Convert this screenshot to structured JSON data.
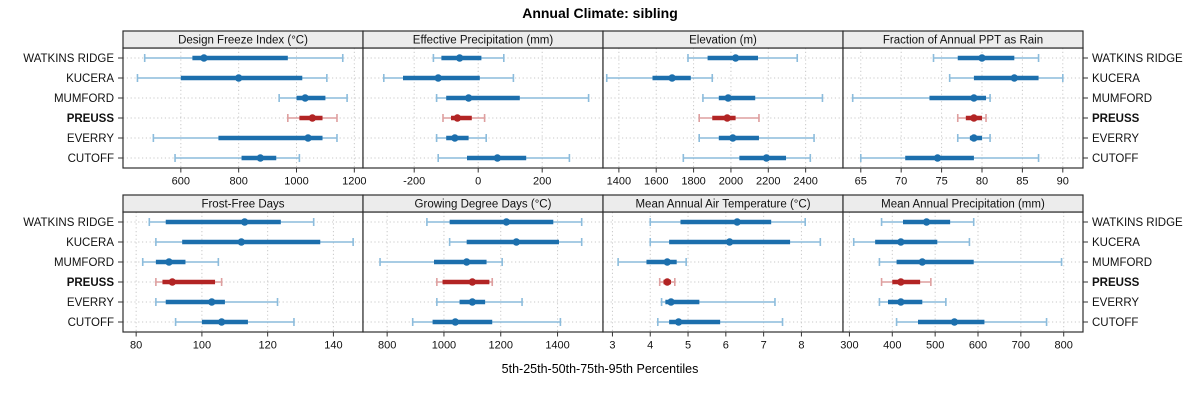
{
  "title": "Annual Climate: sibling",
  "caption": "5th-25th-50th-75th-95th Percentiles",
  "categories": [
    "WATKINS RIDGE",
    "KUCERA",
    "MUMFORD",
    "PREUSS",
    "EVERRY",
    "CUTOFF"
  ],
  "highlight_category": "PREUSS",
  "colors": {
    "series_strong": "#1c6fad",
    "series_light": "#8cbcdc",
    "highlight_strong": "#b22424",
    "highlight_light": "#de9f9f",
    "grid": "#c9c9c9",
    "strip_bg": "#ececec",
    "panel_border": "#2e2e2e",
    "tick": "#333333",
    "text": "#111111"
  },
  "chart_data": {
    "type": "percentile-dotplot",
    "percentiles": [
      5,
      25,
      50,
      75,
      95
    ],
    "layout_hint": {
      "rows": 2,
      "cols": 4,
      "grid": "dotted",
      "labels_both_sides": true
    },
    "panels": [
      {
        "title": "Design Freeze Index (°C)",
        "xlim": [
          400,
          1230
        ],
        "ticks": [
          600,
          800,
          1000,
          1200
        ],
        "series": [
          {
            "name": "WATKINS RIDGE",
            "values": [
              475,
              640,
              680,
              970,
              1160
            ]
          },
          {
            "name": "KUCERA",
            "values": [
              450,
              600,
              800,
              1020,
              1105
            ]
          },
          {
            "name": "MUMFORD",
            "values": [
              940,
              1000,
              1030,
              1100,
              1175
            ]
          },
          {
            "name": "PREUSS",
            "values": [
              970,
              1010,
              1055,
              1090,
              1140
            ]
          },
          {
            "name": "EVERRY",
            "values": [
              505,
              730,
              1040,
              1090,
              1140
            ]
          },
          {
            "name": "CUTOFF",
            "values": [
              580,
              810,
              875,
              930,
              1010
            ]
          }
        ]
      },
      {
        "title": "Effective Precipitation (mm)",
        "xlim": [
          -360,
          390
        ],
        "ticks": [
          -200,
          0,
          200
        ],
        "series": [
          {
            "name": "WATKINS RIDGE",
            "values": [
              -140,
              -115,
              -58,
              10,
              80
            ]
          },
          {
            "name": "KUCERA",
            "values": [
              -295,
              -235,
              -125,
              5,
              110
            ]
          },
          {
            "name": "MUMFORD",
            "values": [
              -130,
              -100,
              -30,
              130,
              345
            ]
          },
          {
            "name": "PREUSS",
            "values": [
              -110,
              -85,
              -65,
              -20,
              20
            ]
          },
          {
            "name": "EVERRY",
            "values": [
              -130,
              -100,
              -73,
              -30,
              25
            ]
          },
          {
            "name": "CUTOFF",
            "values": [
              -125,
              -35,
              60,
              150,
              285
            ]
          }
        ]
      },
      {
        "title": "Elevation (m)",
        "xlim": [
          1315,
          2600
        ],
        "ticks": [
          1400,
          1600,
          1800,
          2000,
          2200,
          2400
        ],
        "series": [
          {
            "name": "WATKINS RIDGE",
            "values": [
              1770,
              1875,
              2025,
              2145,
              2355
            ]
          },
          {
            "name": "KUCERA",
            "values": [
              1335,
              1580,
              1685,
              1785,
              1900
            ]
          },
          {
            "name": "MUMFORD",
            "values": [
              1850,
              1935,
              1985,
              2130,
              2490
            ]
          },
          {
            "name": "PREUSS",
            "values": [
              1830,
              1900,
              1980,
              2025,
              2150
            ]
          },
          {
            "name": "EVERRY",
            "values": [
              1830,
              1935,
              2010,
              2150,
              2445
            ]
          },
          {
            "name": "CUTOFF",
            "values": [
              1745,
              2045,
              2190,
              2295,
              2425
            ]
          }
        ]
      },
      {
        "title": "Fraction of Annual PPT as Rain",
        "xlim": [
          62.8,
          92.5
        ],
        "ticks": [
          65,
          70,
          75,
          80,
          85,
          90
        ],
        "series": [
          {
            "name": "WATKINS RIDGE",
            "values": [
              74,
              77,
              80,
              84,
              87
            ]
          },
          {
            "name": "KUCERA",
            "values": [
              76,
              79,
              84,
              87,
              90
            ]
          },
          {
            "name": "MUMFORD",
            "values": [
              64,
              73.5,
              79,
              80.5,
              81
            ]
          },
          {
            "name": "PREUSS",
            "values": [
              77,
              78,
              79,
              80,
              80.5
            ]
          },
          {
            "name": "EVERRY",
            "values": [
              77,
              78.5,
              79,
              80,
              81
            ]
          },
          {
            "name": "CUTOFF",
            "values": [
              65,
              70.5,
              74.5,
              79,
              87
            ]
          }
        ]
      },
      {
        "title": "Frost-Free Days",
        "xlim": [
          76,
          149
        ],
        "ticks": [
          80,
          100,
          120,
          140
        ],
        "series": [
          {
            "name": "WATKINS RIDGE",
            "values": [
              84,
              89,
              113,
              124,
              134
            ]
          },
          {
            "name": "KUCERA",
            "values": [
              86,
              94,
              112,
              136,
              146
            ]
          },
          {
            "name": "MUMFORD",
            "values": [
              82,
              86,
              90,
              95,
              105
            ]
          },
          {
            "name": "PREUSS",
            "values": [
              86,
              88,
              91,
              104,
              106
            ]
          },
          {
            "name": "EVERRY",
            "values": [
              86,
              89,
              103,
              107,
              123
            ]
          },
          {
            "name": "CUTOFF",
            "values": [
              92,
              100,
              106,
              114,
              128
            ]
          }
        ]
      },
      {
        "title": "Growing Degree Days (°C)",
        "xlim": [
          715,
          1560
        ],
        "ticks": [
          800,
          1000,
          1200,
          1400
        ],
        "series": [
          {
            "name": "WATKINS RIDGE",
            "values": [
              940,
              1020,
              1220,
              1385,
              1485
            ]
          },
          {
            "name": "KUCERA",
            "values": [
              1020,
              1080,
              1255,
              1405,
              1485
            ]
          },
          {
            "name": "MUMFORD",
            "values": [
              775,
              965,
              1080,
              1150,
              1205
            ]
          },
          {
            "name": "PREUSS",
            "values": [
              975,
              995,
              1100,
              1160,
              1170
            ]
          },
          {
            "name": "EVERRY",
            "values": [
              975,
              1055,
              1100,
              1145,
              1275
            ]
          },
          {
            "name": "CUTOFF",
            "values": [
              890,
              960,
              1040,
              1170,
              1410
            ]
          }
        ]
      },
      {
        "title": "Mean Annual Air Temperature (°C)",
        "xlim": [
          2.75,
          9.1
        ],
        "ticks": [
          3,
          4,
          5,
          6,
          7,
          8
        ],
        "series": [
          {
            "name": "WATKINS RIDGE",
            "values": [
              4.0,
              4.8,
              6.3,
              7.2,
              8.1
            ]
          },
          {
            "name": "KUCERA",
            "values": [
              4.0,
              4.5,
              6.1,
              7.7,
              8.5
            ]
          },
          {
            "name": "MUMFORD",
            "values": [
              3.15,
              3.9,
              4.45,
              4.7,
              4.95
            ]
          },
          {
            "name": "PREUSS",
            "values": [
              4.25,
              4.35,
              4.45,
              4.55,
              4.65
            ]
          },
          {
            "name": "EVERRY",
            "values": [
              4.3,
              4.4,
              4.55,
              5.3,
              7.3
            ]
          },
          {
            "name": "CUTOFF",
            "values": [
              4.2,
              4.5,
              4.75,
              5.85,
              7.5
            ]
          }
        ]
      },
      {
        "title": "Mean Annual Precipitation (mm)",
        "xlim": [
          285,
          845
        ],
        "ticks": [
          300,
          400,
          500,
          600,
          700,
          800
        ],
        "series": [
          {
            "name": "WATKINS RIDGE",
            "values": [
              375,
              425,
              480,
              535,
              590
            ]
          },
          {
            "name": "KUCERA",
            "values": [
              310,
              360,
              420,
              505,
              580
            ]
          },
          {
            "name": "MUMFORD",
            "values": [
              370,
              410,
              470,
              590,
              795
            ]
          },
          {
            "name": "PREUSS",
            "values": [
              375,
              400,
              420,
              465,
              490
            ]
          },
          {
            "name": "EVERRY",
            "values": [
              370,
              390,
              420,
              470,
              525
            ]
          },
          {
            "name": "CUTOFF",
            "values": [
              410,
              460,
              545,
              615,
              760
            ]
          }
        ]
      }
    ]
  }
}
